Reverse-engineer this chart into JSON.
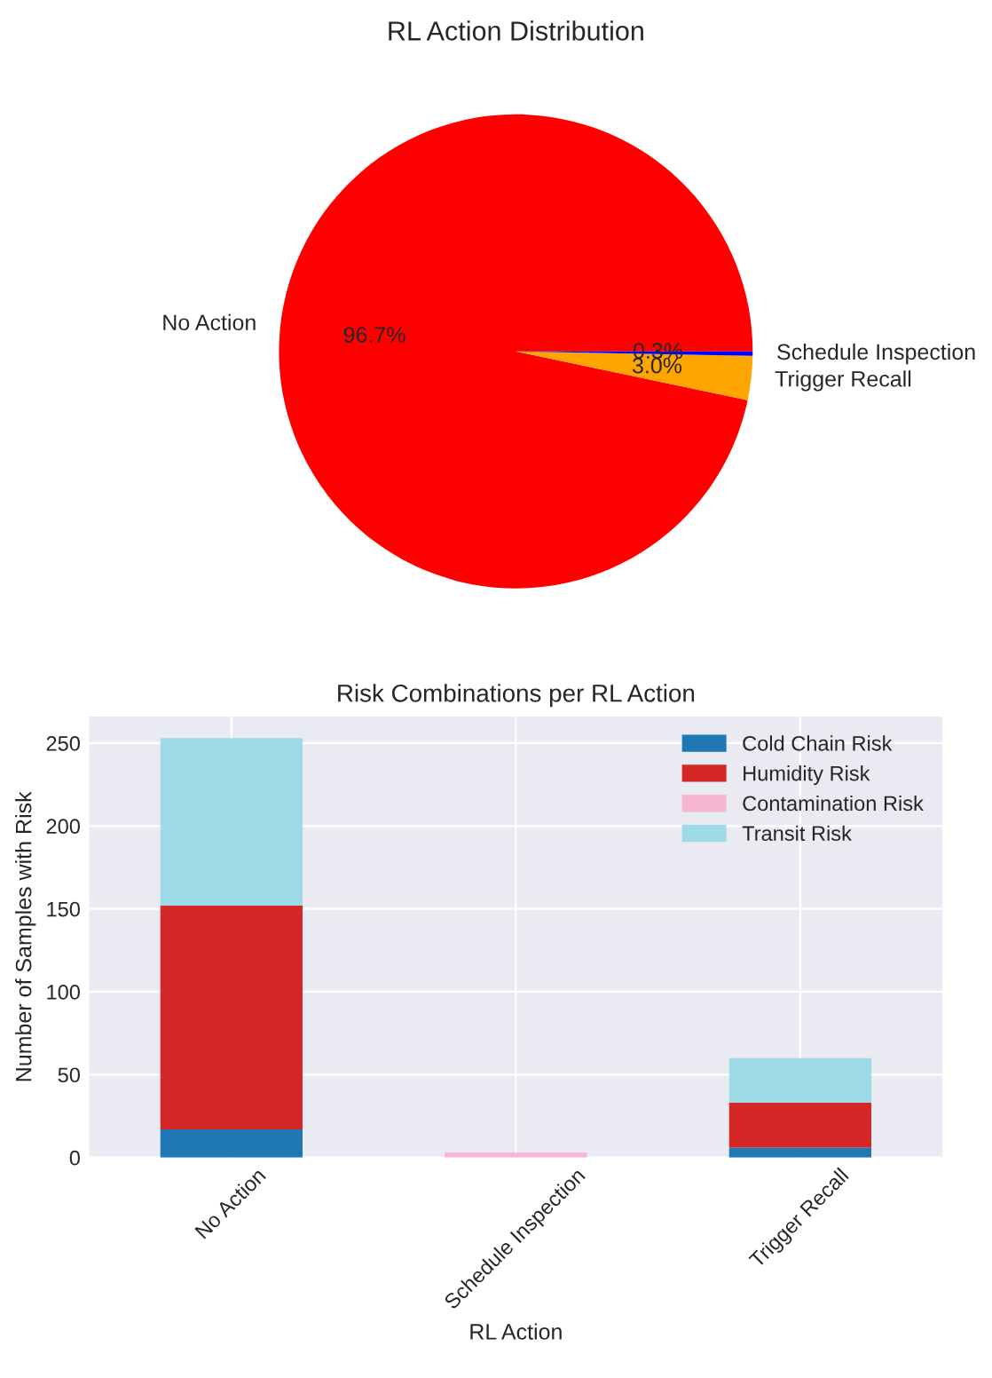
{
  "chart_data": [
    {
      "type": "pie",
      "title": "RL Action Distribution",
      "categories": [
        "No Action",
        "Trigger Recall",
        "Schedule Inspection"
      ],
      "values": [
        96.7,
        3.0,
        0.3
      ],
      "colors": [
        "#ff0000",
        "#ffa500",
        "#0000ff"
      ],
      "value_labels": [
        "96.7%",
        "3.0%",
        "0.3%"
      ]
    },
    {
      "type": "bar",
      "stacked": true,
      "title": "Risk Combinations per RL Action",
      "xlabel": "RL Action",
      "ylabel": "Number of Samples with Risk",
      "categories": [
        "No Action",
        "Schedule Inspection",
        "Trigger Recall"
      ],
      "ylim": [
        0,
        266
      ],
      "yticks": [
        0,
        50,
        100,
        150,
        200,
        250
      ],
      "grid": true,
      "legend": "top right",
      "series": [
        {
          "name": "Cold Chain Risk",
          "color": "#1f77b4",
          "values": [
            17,
            0,
            6
          ]
        },
        {
          "name": "Humidity Risk",
          "color": "#d62728",
          "values": [
            135,
            0,
            27
          ]
        },
        {
          "name": "Contamination Risk",
          "color": "#f7b6d2",
          "values": [
            0,
            3,
            0
          ]
        },
        {
          "name": "Transit Risk",
          "color": "#9edae5",
          "values": [
            101,
            0,
            27
          ]
        }
      ]
    }
  ]
}
